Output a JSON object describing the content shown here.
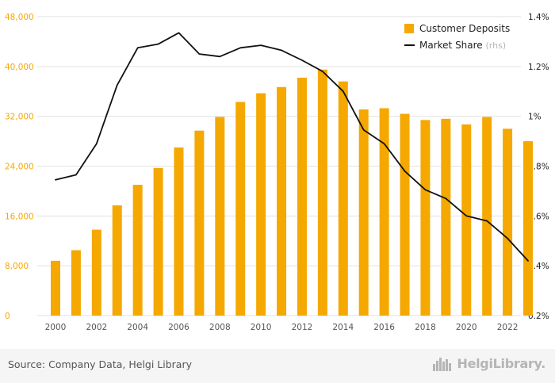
{
  "chart_data": {
    "type": "bar+line",
    "categories": [
      "2000",
      "2001",
      "2002",
      "2003",
      "2004",
      "2005",
      "2006",
      "2007",
      "2008",
      "2009",
      "2010",
      "2011",
      "2012",
      "2013",
      "2014",
      "2015",
      "2016",
      "2017",
      "2018",
      "2019",
      "2020",
      "2021",
      "2022",
      "2023"
    ],
    "x_tick_labels": [
      "2000",
      "2002",
      "2004",
      "2006",
      "2008",
      "2010",
      "2012",
      "2014",
      "2016",
      "2018",
      "2020",
      "2022"
    ],
    "series": [
      {
        "name": "Customer Deposits",
        "type": "bar",
        "axis": "left",
        "color": "#f5a800",
        "values": [
          8800,
          10500,
          13800,
          17700,
          21000,
          23700,
          27000,
          29700,
          31900,
          34300,
          35700,
          36700,
          38200,
          39500,
          37600,
          33100,
          33300,
          32400,
          31400,
          31600,
          30700,
          31900,
          30000,
          28000
        ]
      },
      {
        "name": "Market Share",
        "suffix": "(rhs)",
        "type": "line",
        "axis": "right",
        "color": "#111111",
        "values": [
          0.745,
          0.765,
          0.89,
          1.125,
          1.275,
          1.29,
          1.335,
          1.25,
          1.24,
          1.275,
          1.285,
          1.265,
          1.225,
          1.18,
          1.1,
          0.945,
          0.89,
          0.78,
          0.705,
          0.67,
          0.6,
          0.58,
          0.51,
          0.42
        ]
      }
    ],
    "y_left": {
      "min": 0,
      "max": 48000,
      "ticks": [
        0,
        8000,
        16000,
        24000,
        32000,
        40000,
        48000
      ],
      "tick_labels": [
        "0",
        "8,000",
        "16,000",
        "24,000",
        "32,000",
        "40,000",
        "48,000"
      ],
      "color": "#f5a800"
    },
    "y_right": {
      "min": 0.2,
      "max": 1.4,
      "ticks": [
        0.2,
        0.4,
        0.6,
        0.8,
        1.0,
        1.2,
        1.4
      ],
      "tick_labels": [
        "0.2%",
        "0.4%",
        "0.6%",
        "0.8%",
        "1%",
        "1.2%",
        "1.4%"
      ],
      "color": "#222222"
    },
    "grid": true,
    "legend_position": "top-right"
  },
  "footer": {
    "source": "Source: Company Data, Helgi Library",
    "brand": "HelgiLibrary."
  },
  "icons": {
    "brand_icon": "city-skyline-icon"
  },
  "colors": {
    "accent": "#f5a800",
    "line": "#111111",
    "grid": "#e2e2e2",
    "muted": "#b5b5b5"
  }
}
